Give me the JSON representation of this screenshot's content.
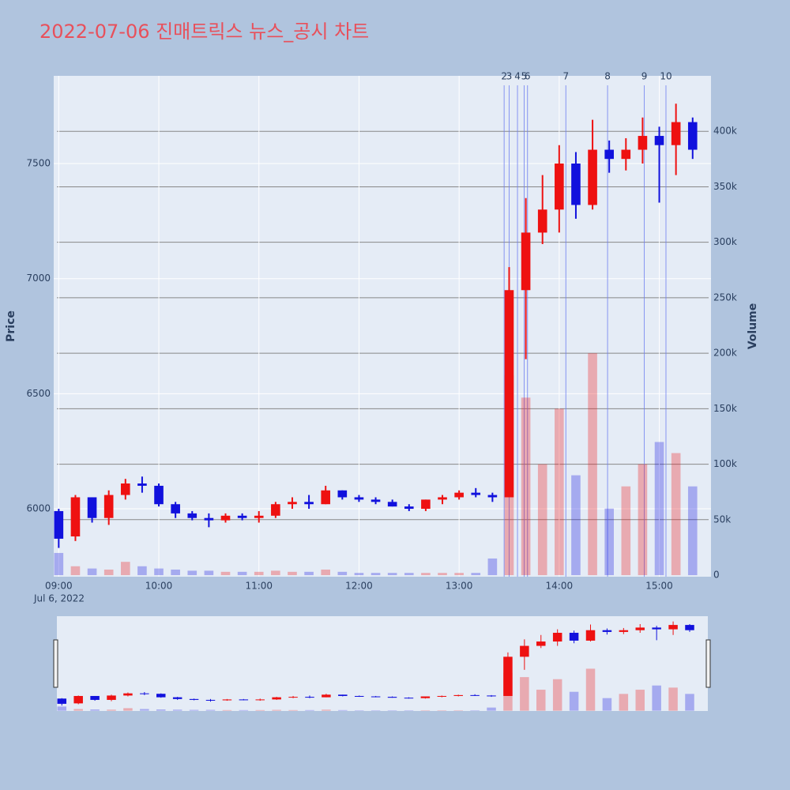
{
  "chart_data": {
    "type": "candlestick",
    "title": "2022-07-06 진매트릭스 뉴스_공시 차트",
    "y_axis_title": "Price",
    "y2_axis_title": "Volume",
    "x_axis_date": "Jul 6, 2022",
    "increasing_color": "#ee1111",
    "decreasing_color": "#1111dd",
    "x": [
      "09:00",
      "09:10",
      "09:20",
      "09:30",
      "09:40",
      "09:50",
      "10:00",
      "10:10",
      "10:20",
      "10:30",
      "10:40",
      "10:50",
      "11:00",
      "11:10",
      "11:20",
      "11:30",
      "11:40",
      "11:50",
      "12:00",
      "12:10",
      "12:20",
      "12:30",
      "12:40",
      "12:50",
      "13:00",
      "13:10",
      "13:20",
      "13:30",
      "13:40",
      "13:50",
      "14:00",
      "14:10",
      "14:20",
      "14:30",
      "14:40",
      "14:50",
      "15:00",
      "15:10",
      "15:20"
    ],
    "open": [
      5990,
      5880,
      6050,
      5960,
      6060,
      6110,
      6100,
      6020,
      5980,
      5960,
      5950,
      5970,
      5960,
      5970,
      6020,
      6030,
      6020,
      6080,
      6050,
      6040,
      6030,
      6010,
      6000,
      6040,
      6050,
      6070,
      6060,
      6050,
      6950,
      7200,
      7300,
      7500,
      7320,
      7560,
      7520,
      7560,
      7620,
      7580,
      7680
    ],
    "high": [
      6000,
      6060,
      6050,
      6080,
      6130,
      6140,
      6110,
      6030,
      5990,
      5980,
      5980,
      5980,
      5990,
      6030,
      6050,
      6060,
      6100,
      6080,
      6060,
      6050,
      6040,
      6020,
      6040,
      6060,
      6080,
      6090,
      6070,
      7050,
      7350,
      7450,
      7580,
      7550,
      7690,
      7600,
      7610,
      7700,
      7660,
      7760,
      7700
    ],
    "low": [
      5830,
      5860,
      5940,
      5930,
      6040,
      6070,
      6010,
      5960,
      5950,
      5920,
      5940,
      5950,
      5940,
      5960,
      6000,
      6000,
      6020,
      6040,
      6030,
      6020,
      6010,
      5990,
      5990,
      6020,
      6040,
      6050,
      6030,
      6050,
      6650,
      7150,
      7200,
      7260,
      7300,
      7460,
      7470,
      7500,
      7330,
      7450,
      7520
    ],
    "close": [
      5870,
      6050,
      5960,
      6060,
      6110,
      6100,
      6020,
      5980,
      5960,
      5950,
      5970,
      5960,
      5970,
      6020,
      6030,
      6020,
      6080,
      6050,
      6040,
      6030,
      6010,
      6000,
      6040,
      6050,
      6070,
      6060,
      6050,
      6950,
      7200,
      7300,
      7500,
      7320,
      7560,
      7520,
      7560,
      7620,
      7580,
      7680,
      7560
    ],
    "volume": [
      20000,
      8000,
      6000,
      5000,
      12000,
      8000,
      6000,
      5000,
      4000,
      4000,
      3000,
      3000,
      3000,
      4000,
      3000,
      3000,
      5000,
      3000,
      2000,
      2000,
      2000,
      2000,
      2000,
      2000,
      2000,
      2000,
      15000,
      180000,
      160000,
      100000,
      150000,
      90000,
      200000,
      60000,
      80000,
      100000,
      120000,
      110000,
      80000
    ],
    "news": [
      {
        "label": "2",
        "x": "13:27"
      },
      {
        "label": "3",
        "x": "13:30"
      },
      {
        "label": "4",
        "x": "13:35"
      },
      {
        "label": "5",
        "x": "13:39"
      },
      {
        "label": "6",
        "x": "13:41"
      },
      {
        "label": "7",
        "x": "14:04"
      },
      {
        "label": "8",
        "x": "14:29"
      },
      {
        "label": "9",
        "x": "14:51"
      },
      {
        "label": "10",
        "x": "15:04"
      }
    ],
    "xlim": [
      "08:57",
      "15:31"
    ],
    "xticks": [
      "09:00",
      "10:00",
      "11:00",
      "12:00",
      "13:00",
      "14:00",
      "15:00"
    ],
    "ylim": [
      5705,
      7881
    ],
    "yticks": [
      6000,
      6500,
      7000,
      7500
    ],
    "y2lim": [
      -1400,
      450000
    ],
    "y2ticks": [
      0,
      {
        "value": 50000,
        "label": "50k"
      },
      {
        "value": 100000,
        "label": "100k"
      },
      {
        "value": 150000,
        "label": "150k"
      },
      {
        "value": 200000,
        "label": "200k"
      },
      {
        "value": 250000,
        "label": "250k"
      },
      {
        "value": 300000,
        "label": "300k"
      },
      {
        "value": 350000,
        "label": "350k"
      },
      {
        "value": 400000,
        "label": "400k"
      }
    ],
    "grid": true
  }
}
